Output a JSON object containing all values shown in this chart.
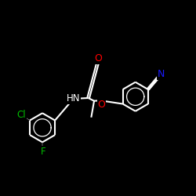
{
  "background": "#000000",
  "bond_color": "#ffffff",
  "atom_colors": {
    "N": "#1a1aff",
    "O": "#ff0000",
    "Cl": "#00bb00",
    "F": "#00bb00",
    "C": "#ffffff",
    "H": "#ffffff"
  },
  "bond_lw": 1.5,
  "font_size": 8.5
}
